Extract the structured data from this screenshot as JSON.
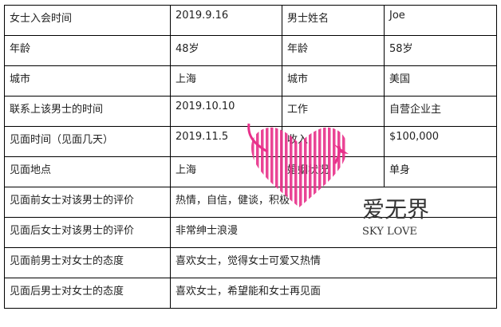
{
  "rows": [
    [
      "女士入会时间",
      "2019.9.16",
      "男士姓名",
      "Joe"
    ],
    [
      "年龄",
      "48岁",
      "年龄",
      "58岁"
    ],
    [
      "城市",
      "上海",
      "城市",
      "美国"
    ],
    [
      "联系上该男士的时间",
      "2019.10.10",
      "工作",
      "自营企业主"
    ],
    [
      "见面时间（见面几天）",
      "2019.11.5",
      "收入",
      "$100,000"
    ],
    [
      "见面地点",
      "上海",
      "婚姻状况",
      "单身"
    ]
  ],
  "wide_rows": [
    [
      "见面前女士对该男士的评价",
      "热情，自信，健谈，积极"
    ],
    [
      "见面后女士对该男士的评价",
      "非常绅士浪漫"
    ],
    [
      "见面前男士对女士的态度",
      "喜欢女士，觉得女士可爱又热情"
    ],
    [
      "见面后男士对女士的态度",
      "喜欢女士，希望能和女士再见面"
    ]
  ],
  "watermark": {
    "text_cn": "爱无界",
    "text_en": "SKY LOVE",
    "color": "#e8308a"
  }
}
